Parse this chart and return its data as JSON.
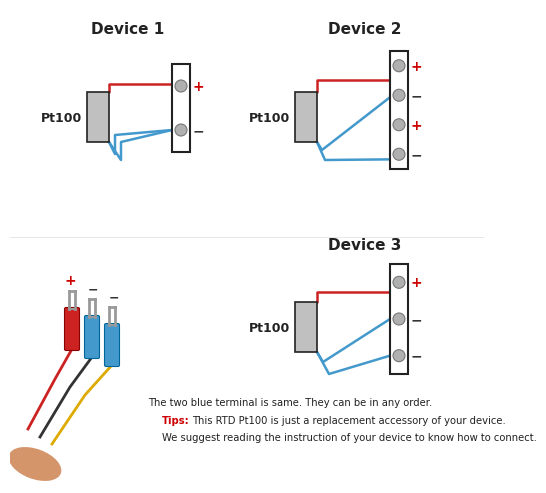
{
  "bg_color": "#ffffff",
  "device1_title": "Device 1",
  "device2_title": "Device 2",
  "device3_title": "Device 3",
  "pt100_label": "Pt100",
  "red_color": "#cc2222",
  "blue_color": "#4499cc",
  "dark_red": "#aa0000",
  "plus_color": "#cc0000",
  "minus_color": "#333333",
  "tips_color": "#cc0000",
  "text_color": "#222222",
  "note_text": "The two blue terminal is same. They can be in any order.",
  "tips_label": "Tips:",
  "tips_line1": "This RTD Pt100 is just a replacement accessory of your device.",
  "tips_line2": "We suggest reading the instruction of your device to know how to connect.",
  "sensor_fill": "#c0c0c0",
  "circle_fill": "#b0b0b0",
  "border_color": "#222222",
  "lw_wire": 1.8,
  "lw_block": 1.5
}
